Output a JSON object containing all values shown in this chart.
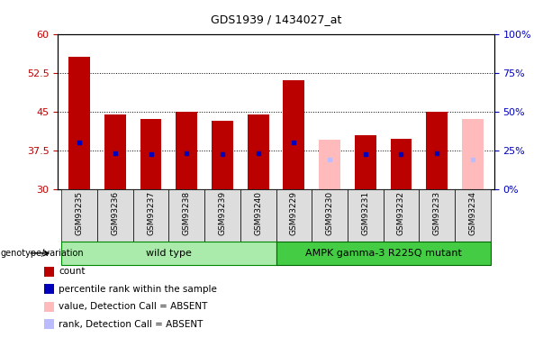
{
  "title": "GDS1939 / 1434027_at",
  "samples": [
    "GSM93235",
    "GSM93236",
    "GSM93237",
    "GSM93238",
    "GSM93239",
    "GSM93240",
    "GSM93229",
    "GSM93230",
    "GSM93231",
    "GSM93232",
    "GSM93233",
    "GSM93234"
  ],
  "count_values": [
    55.5,
    44.5,
    43.5,
    45.0,
    43.2,
    44.5,
    51.0,
    null,
    40.5,
    39.8,
    45.0,
    null
  ],
  "rank_values": [
    39.0,
    37.0,
    36.8,
    37.0,
    36.8,
    37.0,
    39.0,
    null,
    36.8,
    36.8,
    37.0,
    null
  ],
  "absent_count_values": [
    null,
    null,
    null,
    null,
    null,
    null,
    null,
    39.5,
    null,
    null,
    null,
    43.5
  ],
  "absent_rank_values": [
    null,
    null,
    null,
    null,
    null,
    null,
    null,
    35.8,
    null,
    null,
    null,
    35.8
  ],
  "ymin": 30,
  "ymax": 60,
  "yticks": [
    30,
    37.5,
    45,
    52.5,
    60
  ],
  "y2ticks_vals": [
    0,
    25,
    50,
    75,
    100
  ],
  "bar_width": 0.6,
  "count_color": "#bb0000",
  "rank_color": "#0000bb",
  "absent_count_color": "#ffbbbb",
  "absent_rank_color": "#bbbbff",
  "wild_type_color": "#aaeaaa",
  "mutant_color": "#44cc44",
  "wild_type_label": "wild type",
  "mutant_label": "AMPK gamma-3 R225Q mutant",
  "genotype_label": "genotype/variation",
  "legend_count": "count",
  "legend_rank": "percentile rank within the sample",
  "legend_absent_count": "value, Detection Call = ABSENT",
  "legend_absent_rank": "rank, Detection Call = ABSENT",
  "grid_dotted_values": [
    37.5,
    45.0,
    52.5
  ],
  "base_value": 30,
  "n_wild": 6,
  "n_mutant": 6
}
